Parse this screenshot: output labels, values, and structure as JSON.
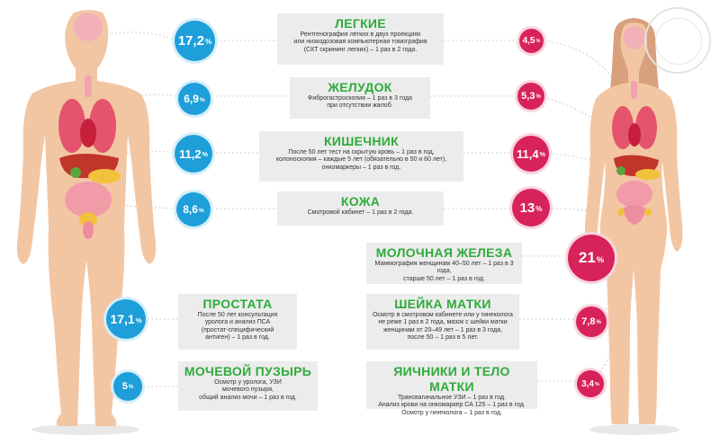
{
  "male_sections": [
    {
      "title": "ЛЕГКИЕ",
      "desc": [
        "Рентгенография легких в двух проекциях",
        "или низкодозовая компьютерная томография",
        "(СКТ скрининг легких) – 1 раз в 2 года."
      ],
      "male_pct": "17,2",
      "female_pct": "4,5"
    },
    {
      "title": "ЖЕЛУДОК",
      "desc": [
        "Фиброгастроскопия – 1 раз в 3 года",
        "при отсутствии жалоб."
      ],
      "male_pct": "6,9",
      "female_pct": "5,3"
    },
    {
      "title": "КИШЕЧНИК",
      "desc": [
        "После 50 лет тест на скрытую кровь – 1 раз в год,",
        "колоноскопия – каждые 5 лет (обязательно в 50 и 60 лет),",
        "онкомаркеры – 1 раз в год."
      ],
      "male_pct": "11,2",
      "female_pct": "11,4"
    },
    {
      "title": "КОЖА",
      "desc": [
        "Смотровой кабинет – 1 раз в 2 года."
      ],
      "male_pct": "8,6",
      "female_pct": "13"
    }
  ],
  "male_only": [
    {
      "title": "ПРОСТАТА",
      "desc": [
        "После 50 лет консультация",
        "уролога и анализ ПСА",
        "(простат-специфический",
        "антиген) – 1 раз в год."
      ],
      "pct": "17,1"
    },
    {
      "title": "МОЧЕВОЙ ПУЗЫРЬ",
      "desc": [
        "Осмотр у уролога, УЗИ",
        "мочевого пузыря,",
        "общий анализ мочи – 1 раз в год."
      ],
      "pct": "5"
    }
  ],
  "female_only": [
    {
      "title": "МОЛОЧНАЯ ЖЕЛЕЗА",
      "desc": [
        "Маммография женщинам 40–50 лет – 1 раз в 3 года,",
        "старше 50 лет – 1 раз в год."
      ],
      "pct": "21"
    },
    {
      "title": "ШЕЙКА МАТКИ",
      "desc": [
        "Осмотр в смотровом кабинете или у гинеколога",
        "не реже 1 раз в 2 года, мазок с шейки матки",
        "женщинам от 20–49 лет – 1 раз в 3 года,",
        "после 50 – 1 раз в 5 лет."
      ],
      "pct": "7,8"
    },
    {
      "title": "ЯИЧНИКИ И ТЕЛО МАТКИ",
      "desc": [
        "Трансвагинальное УЗИ – 1 раз в год.",
        "Анализ крови на онкомаркер СА 125 – 1 раз в год.",
        "Осмотр у гинеколога – 1 раз в год."
      ],
      "pct": "3,4"
    }
  ],
  "unit": "%",
  "colors": {
    "accent": "#2eab3a",
    "male": "#1e9fd9",
    "female": "#d8235a",
    "box": "#ececec",
    "skin": "#f3c6a3"
  }
}
